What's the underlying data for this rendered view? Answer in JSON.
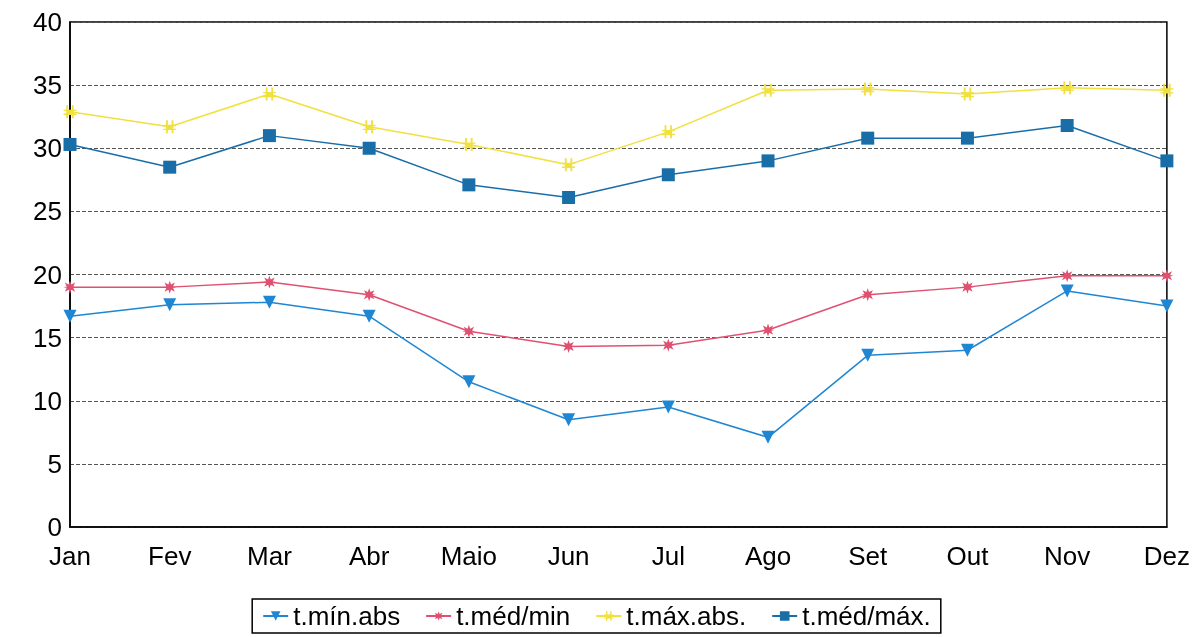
{
  "chart_data": {
    "type": "line",
    "categories": [
      "Jan",
      "Fev",
      "Mar",
      "Abr",
      "Maio",
      "Jun",
      "Jul",
      "Ago",
      "Set",
      "Out",
      "Nov",
      "Dez"
    ],
    "series": [
      {
        "name": "t.mín.abs",
        "color": "#1f86d4",
        "marker": "triangle",
        "values": [
          16.7,
          17.6,
          17.8,
          16.7,
          11.5,
          8.5,
          9.5,
          7.1,
          13.6,
          14.0,
          18.7,
          17.5
        ]
      },
      {
        "name": "t.méd/min",
        "color": "#e05070",
        "marker": "star",
        "values": [
          19.0,
          19.0,
          19.4,
          18.4,
          15.5,
          14.3,
          14.4,
          15.6,
          18.4,
          19.0,
          19.9,
          19.9
        ]
      },
      {
        "name": "t.máx.abs.",
        "color": "#f0e040",
        "marker": "cross",
        "values": [
          32.9,
          31.7,
          34.3,
          31.7,
          30.3,
          28.7,
          31.3,
          34.6,
          34.7,
          34.3,
          34.8,
          34.6
        ]
      },
      {
        "name": "t.méd/máx.",
        "color": "#1a6ea8",
        "marker": "square",
        "values": [
          30.3,
          28.5,
          31.0,
          30.0,
          27.1,
          26.1,
          27.9,
          29.0,
          30.8,
          30.8,
          31.8,
          29.0
        ]
      }
    ],
    "ylim": [
      0,
      40
    ],
    "yticks": [
      0,
      5,
      10,
      15,
      20,
      25,
      30,
      35,
      40
    ],
    "grid": "y",
    "legend": "bottom",
    "line_style": "solid"
  }
}
